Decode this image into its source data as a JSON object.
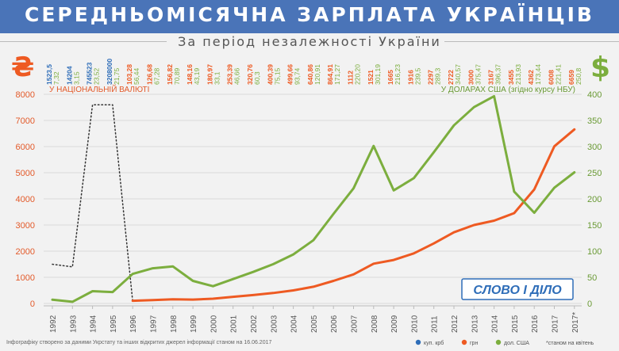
{
  "header": {
    "title": "СЕРЕДНЬОМІСЯЧНА ЗАРПЛАТА УКРАЇНЦІВ",
    "subtitle": "За період незалежності України"
  },
  "footer": {
    "note": "Інфографіку створено за даними Укрстату та інших відкритих джерел інформації станом на 16.06.2017"
  },
  "logo": {
    "text": "СЛОВО І ДІЛО"
  },
  "colors": {
    "title_bg": "#4a74b8",
    "kub": "#2e6db8",
    "uah": "#ee5a22",
    "usd": "#7cae3e",
    "label_uah": "#e35a2a",
    "label_usd": "#6a9a35"
  },
  "icons": {
    "left": "hryvnia-sign-icon",
    "right": "dollar-sign-icon"
  },
  "chart_data": {
    "type": "line",
    "categories": [
      "1992",
      "1993",
      "1994",
      "1995",
      "1996",
      "1997",
      "1998",
      "1999",
      "2000",
      "2001",
      "2002",
      "2003",
      "2004",
      "2005",
      "2006",
      "2007",
      "2008",
      "2009",
      "2010",
      "2011",
      "2012",
      "2013",
      "2014",
      "2015",
      "2016",
      "2017",
      "2017*"
    ],
    "left_axis_label": "У НАЦІОНАЛЬНІЙ ВАЛЮТІ",
    "right_axis_label": "У ДОЛАРАХ США (згідно курсу НБУ)",
    "left_ticks": [
      "0",
      "1000",
      "2000",
      "3000",
      "4000",
      "5000",
      "6000",
      "7000",
      "8000"
    ],
    "right_ticks": [
      "0",
      "50",
      "100",
      "150",
      "200",
      "250",
      "300",
      "350",
      "400"
    ],
    "ylim_left": [
      0,
      8000
    ],
    "ylim_right": [
      0,
      400
    ],
    "top_labels": [
      {
        "v1": "1523,5",
        "v2": "7,32",
        "c1": "kub",
        "c2": "usd"
      },
      {
        "v1": "14204",
        "v2": "3,15",
        "c1": "kub",
        "c2": "usd"
      },
      {
        "v1": "745523",
        "v2": "23,52",
        "c1": "kub",
        "c2": "usd"
      },
      {
        "v1": "3208000",
        "v2": "21,75",
        "c1": "kub",
        "c2": "usd"
      },
      {
        "v1": "103,28",
        "v2": "56,44",
        "c1": "uah",
        "c2": "usd"
      },
      {
        "v1": "126,68",
        "v2": "67,28",
        "c1": "uah",
        "c2": "usd"
      },
      {
        "v1": "156,82",
        "v2": "70,89",
        "c1": "uah",
        "c2": "usd"
      },
      {
        "v1": "148,16",
        "v2": "43,19",
        "c1": "uah",
        "c2": "usd"
      },
      {
        "v1": "180,97",
        "v2": "33,1",
        "c1": "uah",
        "c2": "usd"
      },
      {
        "v1": "253,39",
        "v2": "46,66",
        "c1": "uah",
        "c2": "usd"
      },
      {
        "v1": "320,76",
        "v2": "60,3",
        "c1": "uah",
        "c2": "usd"
      },
      {
        "v1": "400,39",
        "v2": "75,15",
        "c1": "uah",
        "c2": "usd"
      },
      {
        "v1": "499,66",
        "v2": "93,74",
        "c1": "uah",
        "c2": "usd"
      },
      {
        "v1": "640,86",
        "v2": "120,91",
        "c1": "uah",
        "c2": "usd"
      },
      {
        "v1": "864,91",
        "v2": "171,27",
        "c1": "uah",
        "c2": "usd"
      },
      {
        "v1": "1112",
        "v2": "220,20",
        "c1": "uah",
        "c2": "usd"
      },
      {
        "v1": "1521",
        "v2": "301,19",
        "c1": "uah",
        "c2": "usd"
      },
      {
        "v1": "1665",
        "v2": "216,23",
        "c1": "uah",
        "c2": "usd"
      },
      {
        "v1": "1916",
        "v2": "239,5",
        "c1": "uah",
        "c2": "usd"
      },
      {
        "v1": "2297",
        "v2": "289,3",
        "c1": "uah",
        "c2": "usd"
      },
      {
        "v1": "2722",
        "v2": "340,57",
        "c1": "uah",
        "c2": "usd"
      },
      {
        "v1": "3000",
        "v2": "375,47",
        "c1": "uah",
        "c2": "usd"
      },
      {
        "v1": "3167",
        "v2": "396,37",
        "c1": "uah",
        "c2": "usd"
      },
      {
        "v1": "3455",
        "v2": "213,93",
        "c1": "uah",
        "c2": "usd"
      },
      {
        "v1": "4362",
        "v2": "173,44",
        "c1": "uah",
        "c2": "usd"
      },
      {
        "v1": "6008",
        "v2": "221,41",
        "c1": "uah",
        "c2": "usd"
      },
      {
        "v1": "6659",
        "v2": "250,8",
        "c1": "uah",
        "c2": "usd"
      }
    ],
    "series": [
      {
        "name": "куп. крб",
        "axis": "left",
        "color_key": "kub",
        "style": "dotted",
        "values": [
          1500,
          1400,
          7600,
          7600,
          80,
          null,
          null,
          null,
          null,
          null,
          null,
          null,
          null,
          null,
          null,
          null,
          null,
          null,
          null,
          null,
          null,
          null,
          null,
          null,
          null,
          null,
          null
        ]
      },
      {
        "name": "грн",
        "axis": "left",
        "color_key": "uah",
        "style": "solid",
        "values": [
          null,
          null,
          null,
          null,
          103.28,
          126.68,
          156.82,
          148.16,
          180.97,
          253.39,
          320.76,
          400.39,
          499.66,
          640.86,
          864.91,
          1112,
          1521,
          1665,
          1916,
          2297,
          2722,
          3000,
          3167,
          3455,
          4362,
          6008,
          6659
        ]
      },
      {
        "name": "дол. США",
        "axis": "right",
        "color_key": "usd",
        "style": "solid",
        "values": [
          7.32,
          3.15,
          23.52,
          21.75,
          56.44,
          67.28,
          70.89,
          43.19,
          33.1,
          46.66,
          60.3,
          75.15,
          93.74,
          120.91,
          171.27,
          220.2,
          301.19,
          216.23,
          239.5,
          289.3,
          340.57,
          375.47,
          396.37,
          213.93,
          173.44,
          221.41,
          250.8
        ]
      }
    ],
    "legend": [
      {
        "label": "куп. крб",
        "color_key": "kub"
      },
      {
        "label": "грн",
        "color_key": "uah"
      },
      {
        "label": "дол. США",
        "color_key": "usd"
      },
      {
        "label": "*станом на квітень",
        "color_key": "usd"
      }
    ]
  }
}
